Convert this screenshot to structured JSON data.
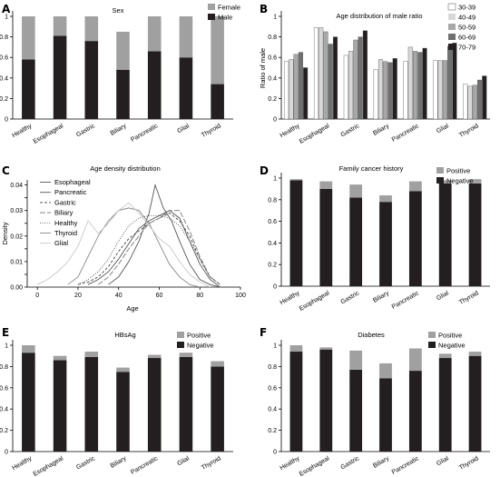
{
  "chart_data": [
    {
      "panel": "A",
      "type": "bar",
      "title": "Sex",
      "categories": [
        "Healthy",
        "Esophageal",
        "Gastric",
        "Biliary",
        "Pancreatic",
        "Glial",
        "Thyroid"
      ],
      "series": [
        {
          "name": "Male",
          "values": [
            0.58,
            0.81,
            0.76,
            0.48,
            0.66,
            0.6,
            0.34
          ],
          "color": "#231f20"
        },
        {
          "name": "Female",
          "values": [
            0.42,
            0.19,
            0.24,
            0.37,
            0.34,
            0.4,
            0.66
          ],
          "color": "#a0a0a0"
        }
      ],
      "stacked": true,
      "ylim": [
        0,
        1
      ],
      "yticks": [
        0,
        0.2,
        0.4,
        0.6,
        0.8,
        1
      ],
      "legend_order": [
        "Female",
        "Male"
      ],
      "legend": "top-right"
    },
    {
      "panel": "B",
      "type": "bar",
      "title": "Age distribution of male ratio",
      "ylabel": "Ratio of male",
      "categories": [
        "Healthy",
        "Esophageal",
        "Gastric",
        "Biliary",
        "Pancreatic",
        "Glial",
        "Thyroid"
      ],
      "series": [
        {
          "name": "30-39",
          "values": [
            0.56,
            0.89,
            0.62,
            0.48,
            0.56,
            0.57,
            0.34
          ],
          "color": "#ffffff"
        },
        {
          "name": "40-49",
          "values": [
            0.58,
            0.89,
            0.66,
            0.58,
            0.7,
            0.57,
            0.32
          ],
          "color": "#d8d8d8"
        },
        {
          "name": "50-59",
          "values": [
            0.63,
            0.85,
            0.77,
            0.56,
            0.66,
            0.57,
            0.33
          ],
          "color": "#a8a8a8"
        },
        {
          "name": "60-69",
          "values": [
            0.65,
            0.73,
            0.8,
            0.55,
            0.65,
            0.71,
            0.38
          ],
          "color": "#707070"
        },
        {
          "name": "70-79",
          "values": [
            0.5,
            0.8,
            0.86,
            0.59,
            0.69,
            0.74,
            0.42
          ],
          "color": "#231f20"
        }
      ],
      "ylim": [
        0,
        1
      ],
      "yticks": [
        0,
        0.2,
        0.4,
        0.6,
        0.8,
        1
      ],
      "legend": "top-right"
    },
    {
      "panel": "C",
      "type": "line",
      "title": "Age density distribution",
      "xlabel": "Age",
      "ylabel": "Density",
      "xlim": [
        -5,
        100
      ],
      "xticks": [
        0,
        20,
        40,
        60,
        80,
        100
      ],
      "ylim": [
        0,
        0.042
      ],
      "yticks": [
        0,
        0.005,
        0.01,
        0.015,
        0.02,
        0.025,
        0.03,
        0.035,
        0.04
      ],
      "ytick_labels": [
        "0.00",
        "",
        "0.01",
        "",
        "0.02",
        "",
        "0.03",
        "",
        "0.04"
      ],
      "series": [
        {
          "name": "Esophageal",
          "color": "#555555",
          "dash": "",
          "x": [
            35,
            40,
            45,
            50,
            55,
            58,
            62,
            66,
            70,
            75,
            80,
            85,
            90
          ],
          "y": [
            0.001,
            0.004,
            0.01,
            0.018,
            0.029,
            0.04,
            0.031,
            0.026,
            0.018,
            0.009,
            0.003,
            0.001,
            0
          ]
        },
        {
          "name": "Pancreatic",
          "color": "#555555",
          "dash": "",
          "x": [
            25,
            30,
            35,
            40,
            45,
            50,
            55,
            60,
            65,
            70,
            75,
            80,
            85,
            90
          ],
          "y": [
            0.001,
            0.003,
            0.006,
            0.011,
            0.017,
            0.023,
            0.026,
            0.028,
            0.03,
            0.027,
            0.018,
            0.009,
            0.003,
            0
          ]
        },
        {
          "name": "Gastric",
          "color": "#444444",
          "dash": "3,2",
          "x": [
            20,
            25,
            30,
            35,
            40,
            45,
            50,
            55,
            60,
            65,
            70,
            75,
            80,
            85,
            90
          ],
          "y": [
            0.001,
            0.002,
            0.004,
            0.008,
            0.014,
            0.019,
            0.022,
            0.025,
            0.027,
            0.029,
            0.026,
            0.02,
            0.011,
            0.004,
            0.001
          ]
        },
        {
          "name": "Biliary",
          "color": "#777777",
          "dash": "6,2",
          "x": [
            30,
            35,
            40,
            45,
            50,
            55,
            60,
            65,
            70,
            75,
            80,
            85,
            90
          ],
          "y": [
            0.001,
            0.004,
            0.009,
            0.015,
            0.02,
            0.025,
            0.027,
            0.03,
            0.03,
            0.022,
            0.012,
            0.004,
            0.001
          ]
        },
        {
          "name": "Healthy",
          "color": "#555555",
          "dash": "1,1.5",
          "x": [
            20,
            25,
            30,
            35,
            40,
            45,
            50,
            55,
            60,
            65,
            70,
            75,
            80,
            85,
            90
          ],
          "y": [
            0.001,
            0.003,
            0.006,
            0.011,
            0.018,
            0.024,
            0.027,
            0.028,
            0.028,
            0.027,
            0.024,
            0.018,
            0.011,
            0.004,
            0.001
          ]
        },
        {
          "name": "Thyroid",
          "color": "#888888",
          "dash": "",
          "x": [
            15,
            20,
            25,
            30,
            35,
            40,
            45,
            50,
            55,
            60,
            65,
            70,
            75,
            80
          ],
          "y": [
            0.001,
            0.004,
            0.012,
            0.02,
            0.026,
            0.03,
            0.031,
            0.03,
            0.025,
            0.017,
            0.009,
            0.004,
            0.001,
            0
          ]
        },
        {
          "name": "Glial",
          "color": "#c8c8c8",
          "dash": "",
          "x": [
            0,
            5,
            10,
            15,
            20,
            25,
            30,
            35,
            40,
            45,
            50,
            55,
            60,
            65,
            70,
            75,
            80,
            85
          ],
          "y": [
            0.001,
            0.003,
            0.006,
            0.01,
            0.016,
            0.026,
            0.021,
            0.025,
            0.03,
            0.033,
            0.029,
            0.024,
            0.019,
            0.016,
            0.01,
            0.005,
            0.002,
            0
          ]
        }
      ],
      "legend": "top-left"
    },
    {
      "panel": "D",
      "type": "bar",
      "title": "Family cancer history",
      "categories": [
        "Healthy",
        "Esophageal",
        "Gastric",
        "Biliary",
        "Pancreatic",
        "Glial",
        "Thyroid"
      ],
      "series": [
        {
          "name": "Negative",
          "values": [
            0.98,
            0.9,
            0.82,
            0.78,
            0.88,
            0.95,
            0.95
          ],
          "color": "#231f20"
        },
        {
          "name": "Positive",
          "values": [
            0.01,
            0.07,
            0.12,
            0.06,
            0.09,
            0.03,
            0.04
          ],
          "color": "#a0a0a0"
        }
      ],
      "stacked": true,
      "ylim": [
        0,
        1
      ],
      "yticks": [
        0,
        0.2,
        0.4,
        0.6,
        0.8,
        1
      ],
      "legend_order": [
        "Positive",
        "Negative"
      ],
      "legend": "top-right"
    },
    {
      "panel": "E",
      "type": "bar",
      "title": "HBsAg",
      "categories": [
        "Healthy",
        "Esophageal",
        "Gastric",
        "Biliary",
        "Pancreatic",
        "Glial",
        "Thyroid"
      ],
      "series": [
        {
          "name": "Negative",
          "values": [
            0.93,
            0.86,
            0.89,
            0.75,
            0.88,
            0.89,
            0.8
          ],
          "color": "#231f20"
        },
        {
          "name": "Positive",
          "values": [
            0.07,
            0.04,
            0.05,
            0.04,
            0.03,
            0.04,
            0.05
          ],
          "color": "#a0a0a0"
        }
      ],
      "stacked": true,
      "ylim": [
        0,
        1
      ],
      "yticks": [
        0,
        0.2,
        0.4,
        0.6,
        0.8,
        1
      ],
      "legend_order": [
        "Positive",
        "Negative"
      ],
      "legend": "top-right"
    },
    {
      "panel": "F",
      "type": "bar",
      "title": "Diabetes",
      "categories": [
        "Healthy",
        "Esophageal",
        "Gastric",
        "Biliary",
        "Pancreatic",
        "Glial",
        "Thyroid"
      ],
      "series": [
        {
          "name": "Negative",
          "values": [
            0.94,
            0.96,
            0.77,
            0.69,
            0.76,
            0.88,
            0.9
          ],
          "color": "#231f20"
        },
        {
          "name": "Positive",
          "values": [
            0.06,
            0.02,
            0.18,
            0.14,
            0.21,
            0.04,
            0.04
          ],
          "color": "#a0a0a0"
        }
      ],
      "stacked": true,
      "ylim": [
        0,
        1
      ],
      "yticks": [
        0,
        0.2,
        0.4,
        0.6,
        0.8,
        1
      ],
      "legend_order": [
        "Positive",
        "Negative"
      ],
      "legend": "top-right"
    }
  ]
}
